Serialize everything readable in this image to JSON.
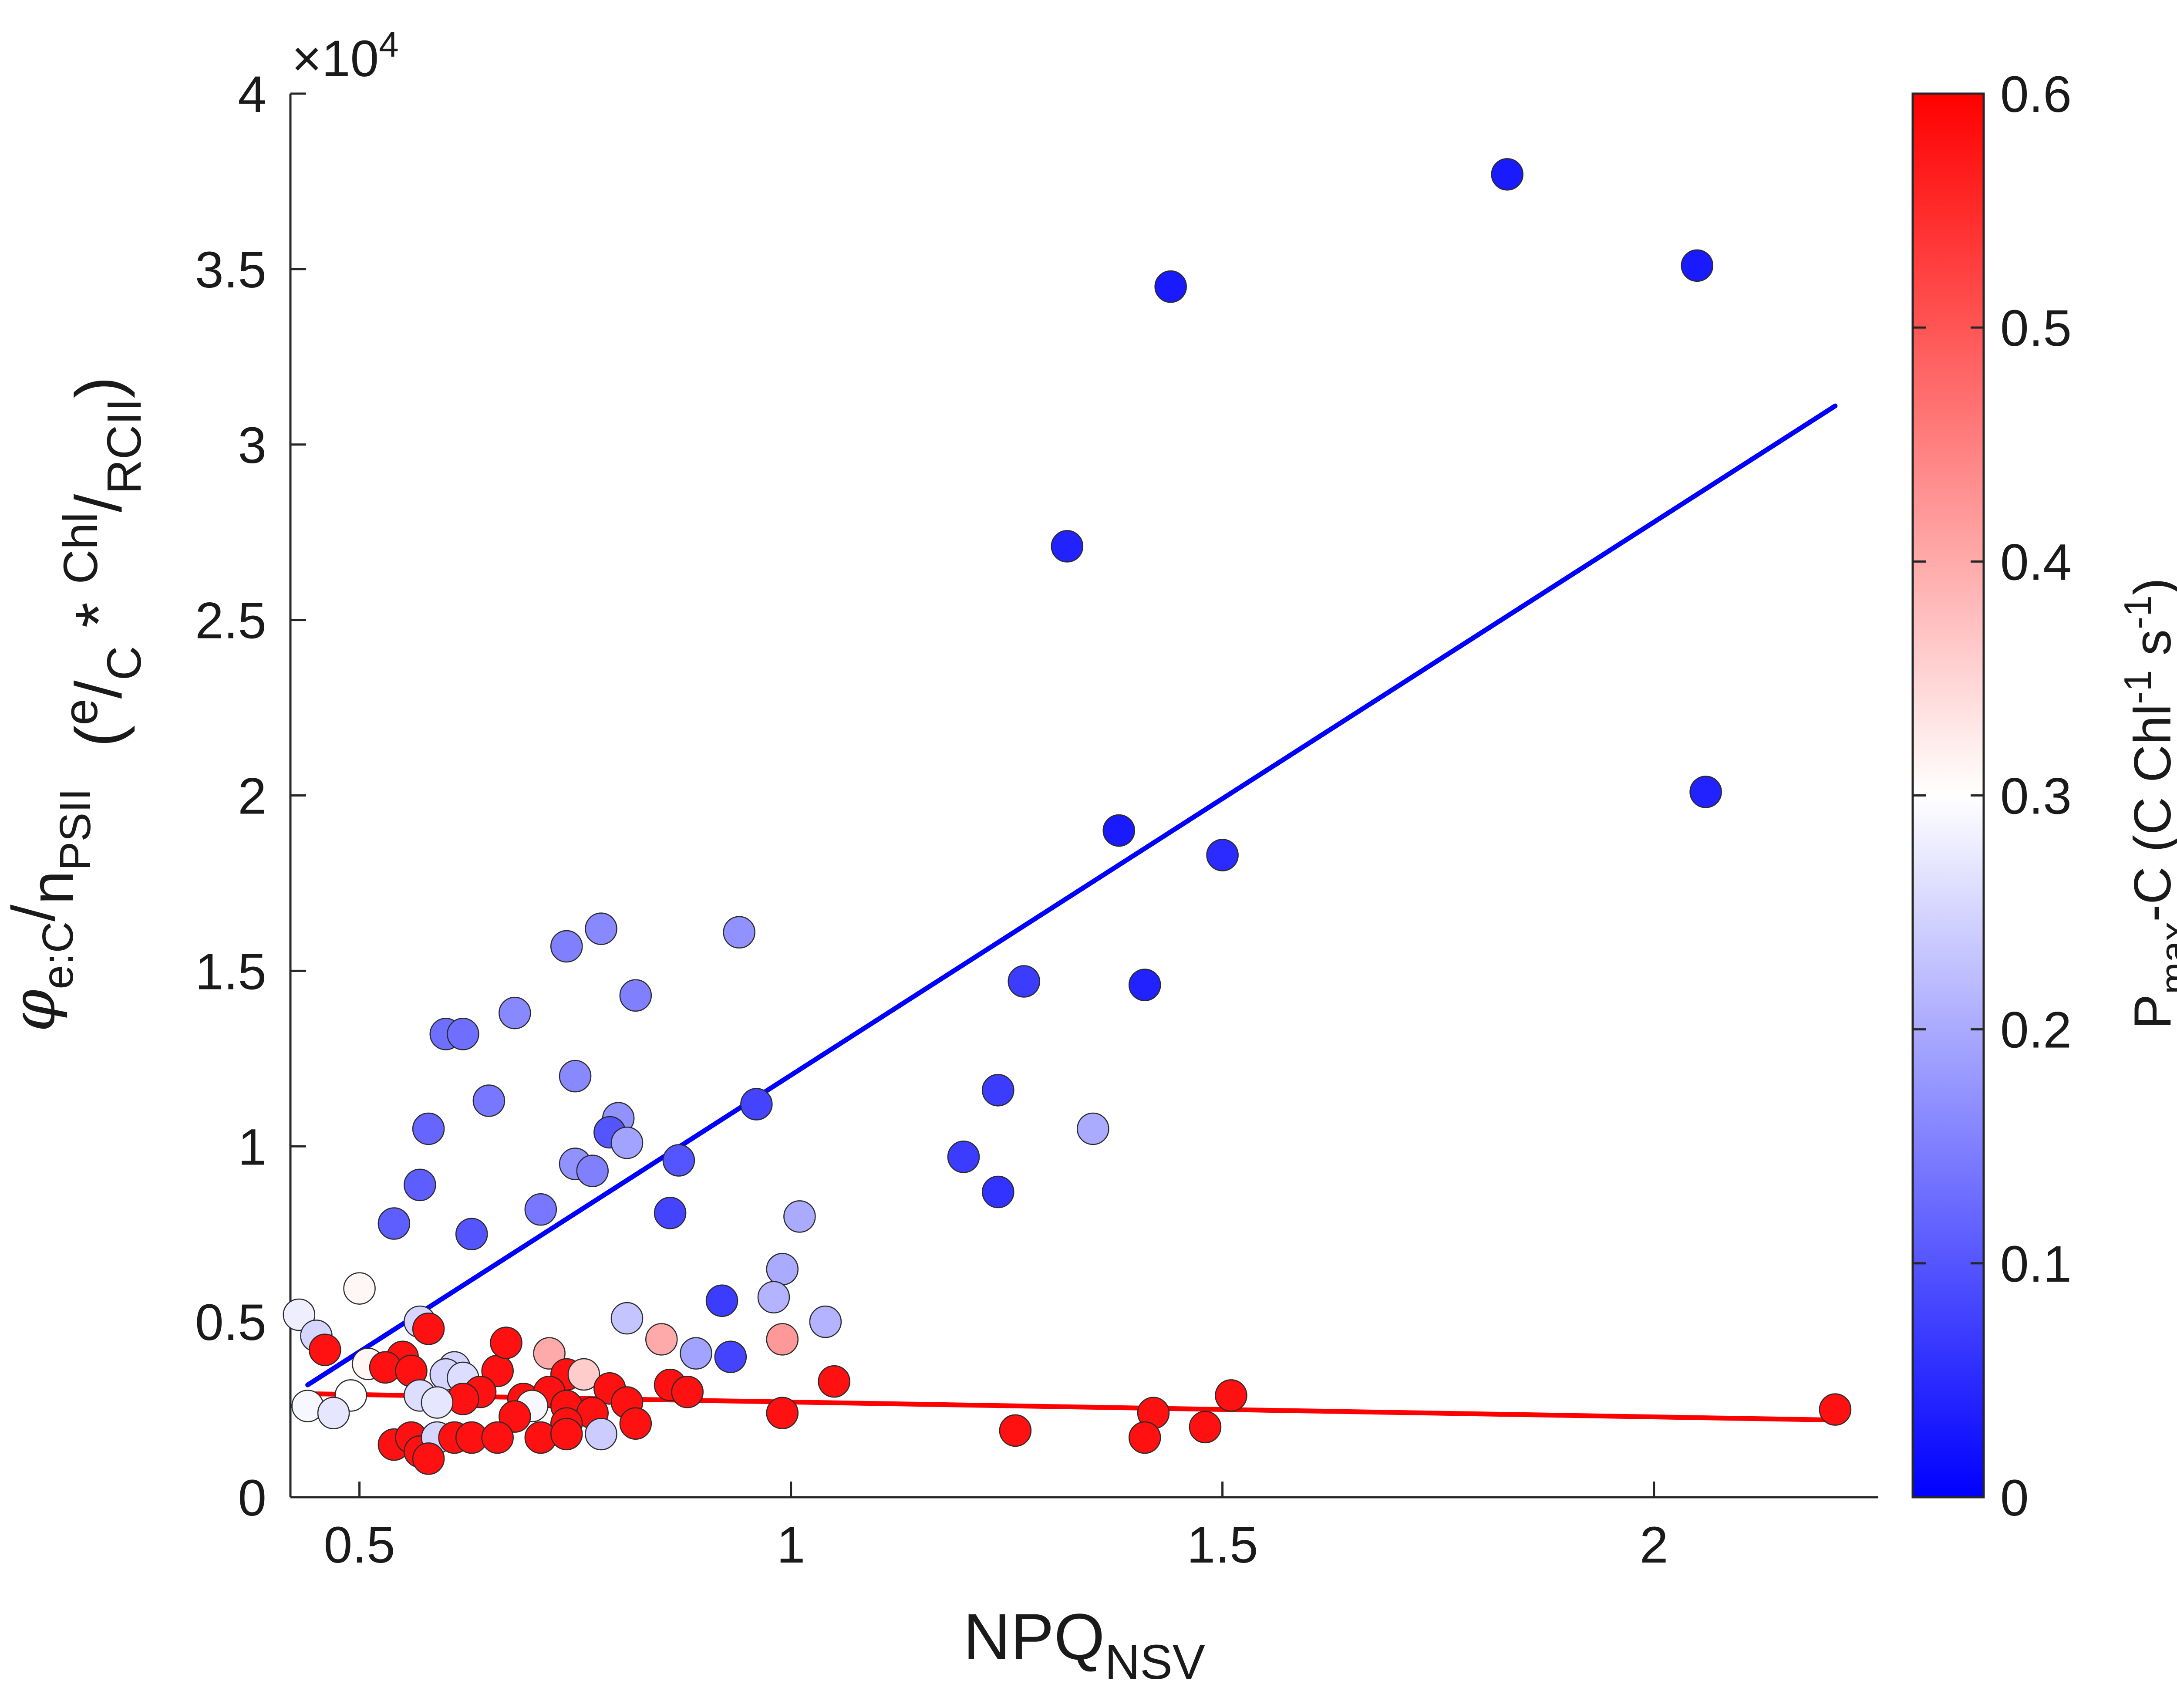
{
  "chart_data": {
    "type": "scatter",
    "x_axis": {
      "label_main": "NPQ",
      "label_sub": "NSV",
      "lim": [
        0.42,
        2.26
      ],
      "ticks": [
        0.5,
        1,
        1.5,
        2
      ],
      "tick_labels": [
        "0.5",
        "1",
        "1.5",
        "2"
      ]
    },
    "y_axis": {
      "lim": [
        0,
        40000
      ],
      "ticks": [
        0,
        5000,
        10000,
        15000,
        20000,
        25000,
        30000,
        35000,
        40000
      ],
      "tick_labels": [
        "0",
        "0.5",
        "1",
        "1.5",
        "2",
        "2.5",
        "3",
        "3.5",
        "4"
      ],
      "multiplier_base": "×10",
      "multiplier_exp": "4",
      "label": {
        "phi": "φ",
        "phi_sub": "e:C",
        "slash1": "/",
        "n": "n",
        "n_sub": "PSII",
        "paren_open": "(",
        "e_sup": "e",
        "slash2": "/",
        "c_sub": "C",
        "star": " * ",
        "chl_sup": "Chl",
        "slash3": "/",
        "rcii_sub": "RCII",
        "paren_close": ")"
      }
    },
    "colorbar": {
      "lim": [
        0,
        0.6
      ],
      "ticks": [
        0,
        0.1,
        0.2,
        0.3,
        0.4,
        0.5,
        0.6
      ],
      "tick_labels": [
        "0",
        "0.1",
        "0.2",
        "0.3",
        "0.4",
        "0.5",
        "0.6"
      ],
      "colors": {
        "low": "#0000ff",
        "mid": "#ffffff",
        "high": "#ff0000"
      },
      "label": {
        "p": "P",
        "p_sub": "max",
        "rest1": "-C (C Chl",
        "sup1": "-1",
        "rest2": " s",
        "sup2": "-1",
        "rest3": ")"
      }
    },
    "fit_lines": [
      {
        "name": "blue fit",
        "color": "#0000ff",
        "x": [
          0.44,
          2.21
        ],
        "y": [
          3200,
          31100
        ]
      },
      {
        "name": "red fit",
        "color": "#ff0000",
        "x": [
          0.44,
          2.21
        ],
        "y": [
          2950,
          2200
        ]
      }
    ],
    "series": [
      {
        "name": "blue points",
        "points": [
          {
            "x": 1.83,
            "y": 37700,
            "c": 0.03
          },
          {
            "x": 2.05,
            "y": 35100,
            "c": 0.03
          },
          {
            "x": 1.44,
            "y": 34500,
            "c": 0.03
          },
          {
            "x": 1.32,
            "y": 27100,
            "c": 0.04
          },
          {
            "x": 2.06,
            "y": 20100,
            "c": 0.04
          },
          {
            "x": 1.38,
            "y": 19000,
            "c": 0.03
          },
          {
            "x": 1.5,
            "y": 18300,
            "c": 0.05
          },
          {
            "x": 1.27,
            "y": 14700,
            "c": 0.07
          },
          {
            "x": 1.41,
            "y": 14600,
            "c": 0.04
          },
          {
            "x": 1.24,
            "y": 11600,
            "c": 0.07
          },
          {
            "x": 1.35,
            "y": 10500,
            "c": 0.2
          },
          {
            "x": 1.2,
            "y": 9700,
            "c": 0.07
          },
          {
            "x": 1.24,
            "y": 8700,
            "c": 0.06
          },
          {
            "x": 0.78,
            "y": 16200,
            "c": 0.16
          },
          {
            "x": 0.94,
            "y": 16100,
            "c": 0.17
          },
          {
            "x": 0.74,
            "y": 15700,
            "c": 0.15
          },
          {
            "x": 0.82,
            "y": 14300,
            "c": 0.15
          },
          {
            "x": 0.68,
            "y": 13800,
            "c": 0.16
          },
          {
            "x": 0.6,
            "y": 13200,
            "c": 0.13
          },
          {
            "x": 0.62,
            "y": 13200,
            "c": 0.13
          },
          {
            "x": 0.75,
            "y": 12000,
            "c": 0.16
          },
          {
            "x": 0.96,
            "y": 11200,
            "c": 0.08
          },
          {
            "x": 0.65,
            "y": 11300,
            "c": 0.14
          },
          {
            "x": 0.8,
            "y": 10800,
            "c": 0.17
          },
          {
            "x": 0.58,
            "y": 10500,
            "c": 0.12
          },
          {
            "x": 0.79,
            "y": 10400,
            "c": 0.1
          },
          {
            "x": 0.81,
            "y": 10100,
            "c": 0.19
          },
          {
            "x": 0.87,
            "y": 9600,
            "c": 0.1
          },
          {
            "x": 0.75,
            "y": 9500,
            "c": 0.17
          },
          {
            "x": 0.77,
            "y": 9300,
            "c": 0.15
          },
          {
            "x": 0.57,
            "y": 8900,
            "c": 0.11
          },
          {
            "x": 0.71,
            "y": 8200,
            "c": 0.14
          },
          {
            "x": 0.86,
            "y": 8100,
            "c": 0.08
          },
          {
            "x": 1.01,
            "y": 8000,
            "c": 0.2
          },
          {
            "x": 0.54,
            "y": 7800,
            "c": 0.11
          },
          {
            "x": 0.63,
            "y": 7500,
            "c": 0.1
          },
          {
            "x": 0.99,
            "y": 6500,
            "c": 0.2
          },
          {
            "x": 0.98,
            "y": 5700,
            "c": 0.21
          },
          {
            "x": 0.92,
            "y": 5600,
            "c": 0.07
          },
          {
            "x": 0.81,
            "y": 5100,
            "c": 0.23
          },
          {
            "x": 1.04,
            "y": 5000,
            "c": 0.21
          },
          {
            "x": 0.57,
            "y": 5000,
            "c": 0.25
          },
          {
            "x": 0.89,
            "y": 4100,
            "c": 0.19
          },
          {
            "x": 0.93,
            "y": 4000,
            "c": 0.08
          }
        ]
      },
      {
        "name": "red and light points",
        "points": [
          {
            "x": 0.43,
            "y": 5200,
            "c": 0.28
          },
          {
            "x": 0.5,
            "y": 5950,
            "c": 0.31
          },
          {
            "x": 0.45,
            "y": 4600,
            "c": 0.25
          },
          {
            "x": 0.46,
            "y": 4200,
            "c": 0.58
          },
          {
            "x": 0.58,
            "y": 4800,
            "c": 0.58
          },
          {
            "x": 0.55,
            "y": 4000,
            "c": 0.58
          },
          {
            "x": 0.51,
            "y": 3800,
            "c": 0.31
          },
          {
            "x": 0.53,
            "y": 3700,
            "c": 0.58
          },
          {
            "x": 0.56,
            "y": 3600,
            "c": 0.58
          },
          {
            "x": 0.61,
            "y": 3700,
            "c": 0.25
          },
          {
            "x": 0.6,
            "y": 3500,
            "c": 0.25
          },
          {
            "x": 0.62,
            "y": 3400,
            "c": 0.26
          },
          {
            "x": 0.66,
            "y": 3600,
            "c": 0.58
          },
          {
            "x": 0.67,
            "y": 4400,
            "c": 0.58
          },
          {
            "x": 0.72,
            "y": 4100,
            "c": 0.4
          },
          {
            "x": 0.74,
            "y": 3500,
            "c": 0.58
          },
          {
            "x": 0.76,
            "y": 3500,
            "c": 0.36
          },
          {
            "x": 0.85,
            "y": 4500,
            "c": 0.4
          },
          {
            "x": 0.99,
            "y": 4500,
            "c": 0.42
          },
          {
            "x": 1.05,
            "y": 3300,
            "c": 0.58
          },
          {
            "x": 0.86,
            "y": 3200,
            "c": 0.58
          },
          {
            "x": 0.88,
            "y": 3000,
            "c": 0.58
          },
          {
            "x": 0.79,
            "y": 3100,
            "c": 0.58
          },
          {
            "x": 0.81,
            "y": 2700,
            "c": 0.58
          },
          {
            "x": 0.64,
            "y": 3000,
            "c": 0.58
          },
          {
            "x": 0.62,
            "y": 2800,
            "c": 0.58
          },
          {
            "x": 0.57,
            "y": 2900,
            "c": 0.26
          },
          {
            "x": 0.59,
            "y": 2700,
            "c": 0.27
          },
          {
            "x": 0.49,
            "y": 2900,
            "c": 0.3
          },
          {
            "x": 0.44,
            "y": 2600,
            "c": 0.29
          },
          {
            "x": 0.47,
            "y": 2400,
            "c": 0.27
          },
          {
            "x": 0.69,
            "y": 2800,
            "c": 0.58
          },
          {
            "x": 0.72,
            "y": 3000,
            "c": 0.58
          },
          {
            "x": 0.7,
            "y": 2600,
            "c": 0.29
          },
          {
            "x": 0.74,
            "y": 2600,
            "c": 0.58
          },
          {
            "x": 0.77,
            "y": 2400,
            "c": 0.58
          },
          {
            "x": 0.68,
            "y": 2300,
            "c": 0.58
          },
          {
            "x": 0.74,
            "y": 2100,
            "c": 0.58
          },
          {
            "x": 0.82,
            "y": 2100,
            "c": 0.58
          },
          {
            "x": 0.99,
            "y": 2400,
            "c": 0.58
          },
          {
            "x": 0.54,
            "y": 1500,
            "c": 0.58
          },
          {
            "x": 0.56,
            "y": 1700,
            "c": 0.58
          },
          {
            "x": 0.57,
            "y": 1300,
            "c": 0.58
          },
          {
            "x": 0.59,
            "y": 1700,
            "c": 0.25
          },
          {
            "x": 0.61,
            "y": 1700,
            "c": 0.58
          },
          {
            "x": 0.63,
            "y": 1700,
            "c": 0.58
          },
          {
            "x": 0.66,
            "y": 1700,
            "c": 0.58
          },
          {
            "x": 0.58,
            "y": 1100,
            "c": 0.58
          },
          {
            "x": 0.71,
            "y": 1700,
            "c": 0.58
          },
          {
            "x": 0.74,
            "y": 1800,
            "c": 0.58
          },
          {
            "x": 0.78,
            "y": 1800,
            "c": 0.24
          },
          {
            "x": 1.51,
            "y": 2900,
            "c": 0.58
          },
          {
            "x": 1.42,
            "y": 2400,
            "c": 0.58
          },
          {
            "x": 1.41,
            "y": 1700,
            "c": 0.58
          },
          {
            "x": 1.48,
            "y": 2000,
            "c": 0.58
          },
          {
            "x": 1.26,
            "y": 1900,
            "c": 0.58
          },
          {
            "x": 2.21,
            "y": 2500,
            "c": 0.58
          }
        ]
      }
    ]
  }
}
